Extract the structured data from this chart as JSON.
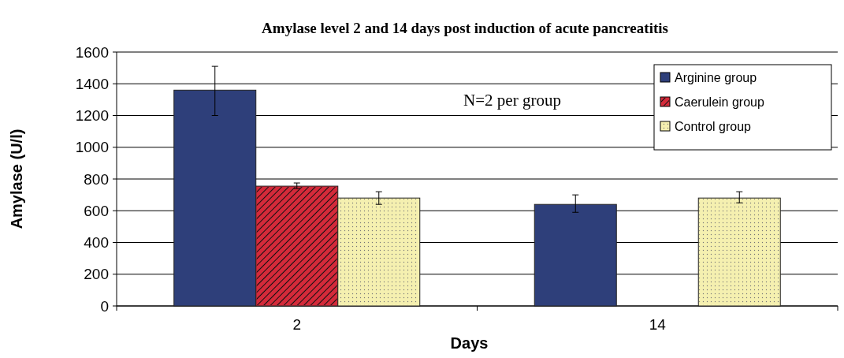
{
  "chart_data": {
    "type": "bar",
    "title": "Amylase level 2 and 14 days post induction of acute pancreatitis",
    "xlabel": "Days",
    "ylabel": "Amylase (U/l)",
    "categories": [
      "2",
      "14"
    ],
    "series": [
      {
        "name": "Arginine group",
        "color": "#2e3f7a",
        "values": [
          1360,
          640
        ],
        "errors": [
          [
            1200,
            1510
          ],
          [
            590,
            700
          ]
        ]
      },
      {
        "name": "Caerulein group",
        "color": "#d42a3a",
        "values": [
          755,
          null
        ],
        "errors": [
          [
            740,
            775
          ],
          null
        ]
      },
      {
        "name": "Control group",
        "color": "#f5f0b0",
        "values": [
          680,
          680
        ],
        "errors": [
          [
            640,
            720
          ],
          [
            650,
            720
          ]
        ]
      }
    ],
    "ylim": [
      0,
      1600
    ],
    "yticks": [
      0,
      200,
      400,
      600,
      800,
      1000,
      1200,
      1400,
      1600
    ],
    "grid": "y",
    "legend": "top right",
    "annotations": [
      "N=2 per group"
    ]
  }
}
